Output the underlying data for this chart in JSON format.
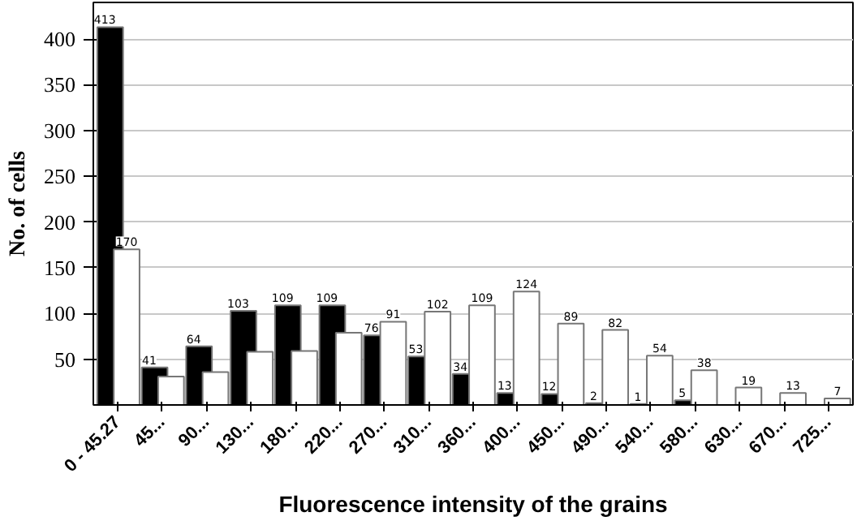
{
  "chart_data": {
    "type": "bar",
    "xlabel": "Fluorescence intensity of the grains",
    "ylabel": "No. of cells",
    "categories": [
      "0 - 45.27",
      "45...",
      "90...",
      "130...",
      "180...",
      "220...",
      "270...",
      "310...",
      "360...",
      "400...",
      "450...",
      "490...",
      "540...",
      "580...",
      "630...",
      "670...",
      "725..."
    ],
    "series": [
      {
        "color": "#000000",
        "values": [
          413,
          41,
          64,
          103,
          109,
          109,
          76,
          53,
          34,
          13,
          12,
          2,
          1,
          5,
          null,
          null,
          null
        ],
        "value_labels": [
          "413",
          "41",
          "64",
          "103",
          "109",
          "109",
          "76",
          "53",
          "34",
          "13",
          "12",
          "2",
          "1",
          "5",
          null,
          null,
          null
        ]
      },
      {
        "color": "#ffffff",
        "values": [
          170,
          31,
          36,
          58,
          59,
          79,
          91,
          102,
          109,
          124,
          89,
          82,
          54,
          38,
          19,
          13,
          7
        ],
        "value_labels": [
          "170",
          null,
          null,
          null,
          null,
          null,
          "91",
          "102",
          "109",
          "124",
          "89",
          "82",
          "54",
          "38",
          "19",
          "13",
          "7"
        ]
      }
    ],
    "ylim": [
      0,
      440
    ],
    "yticks": [
      50,
      100,
      150,
      200,
      250,
      300,
      350,
      400
    ],
    "grid": "y"
  }
}
